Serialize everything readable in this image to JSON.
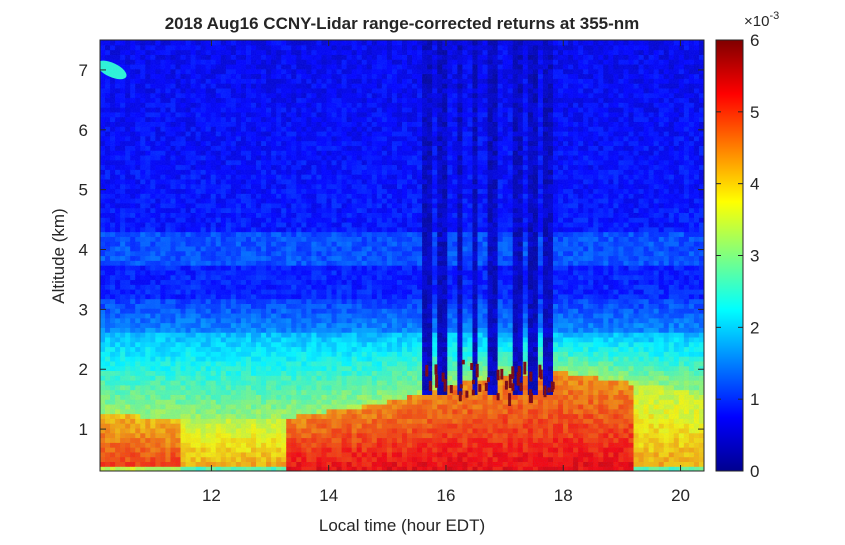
{
  "chart_data": {
    "type": "heatmap",
    "title": "2018 Aug16 CCNY-Lidar range-corrected returns at 355-nm",
    "xlabel": "Local time (hour EDT)",
    "ylabel": "Altitude (km)",
    "xlim": [
      10.1,
      20.4
    ],
    "ylim": [
      0.3,
      7.5
    ],
    "x_ticks": [
      12,
      14,
      16,
      18,
      20
    ],
    "y_ticks": [
      1,
      2,
      3,
      4,
      5,
      6,
      7
    ],
    "colorbar": {
      "colormap": "jet",
      "range": [
        0,
        6
      ],
      "ticks": [
        0,
        1,
        2,
        3,
        4,
        5,
        6
      ],
      "exponent_label": "×10",
      "exponent": "-3"
    },
    "features": [
      {
        "type": "boundary_layer_top",
        "points": [
          [
            10.1,
            1.3
          ],
          [
            11.0,
            1.2
          ],
          [
            12.0,
            1.15
          ],
          [
            13.3,
            1.2
          ],
          [
            14.0,
            1.3
          ],
          [
            15.0,
            1.45
          ],
          [
            16.0,
            1.75
          ],
          [
            17.0,
            1.9
          ],
          [
            18.0,
            1.95
          ],
          [
            19.0,
            1.8
          ],
          [
            20.4,
            1.6
          ]
        ]
      },
      {
        "type": "residual_layer",
        "x_range": [
          10.1,
          20.4
        ],
        "y_range": [
          1.4,
          2.6
        ],
        "value": 2.0
      },
      {
        "type": "aerosol_layer_aloft",
        "x_range": [
          10.1,
          20.4
        ],
        "y_range": [
          3.7,
          4.3
        ],
        "value": 1.2
      },
      {
        "type": "high_signal_surface",
        "x_range": [
          13.3,
          19.2
        ],
        "value": 5.3
      },
      {
        "type": "clouds",
        "x_range": [
          15.6,
          17.9
        ],
        "y_range": [
          1.6,
          2.4
        ],
        "value": 6.0
      },
      {
        "type": "attenuation_columns",
        "x": [
          15.7,
          15.95,
          16.25,
          16.5,
          16.8,
          17.25,
          17.5,
          17.75
        ]
      },
      {
        "type": "cirrus_patch",
        "x": 10.3,
        "y": 7.0,
        "value": 2.5
      }
    ]
  }
}
